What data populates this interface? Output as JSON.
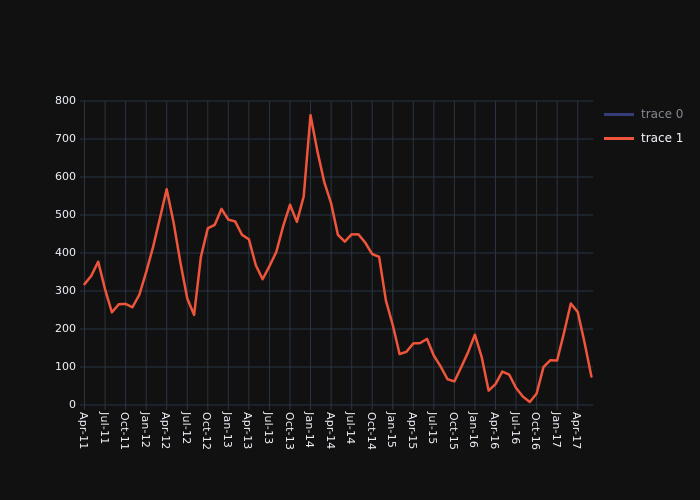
{
  "figure": {
    "background": "#111111",
    "gridcolor": "#283442",
    "tick_text_color": "#eaeef5"
  },
  "legend": {
    "items": [
      {
        "label": "trace 0",
        "color": "#636efa",
        "hidden": true
      },
      {
        "label": "trace 1",
        "color": "#EF553B",
        "hidden": false
      }
    ]
  },
  "chart_data": {
    "type": "line",
    "title": "",
    "xlabel": "",
    "ylabel": "",
    "x_range": [
      "Apr-2011",
      "Jun-2017"
    ],
    "x_data_interval": "monthly",
    "x_tick_interval": "quarterly",
    "x_tick_labels": [
      "Apr-11",
      "Jul-11",
      "Oct-11",
      "Jan-12",
      "Apr-12",
      "Jul-12",
      "Oct-12",
      "Jan-13",
      "Apr-13",
      "Jul-13",
      "Oct-13",
      "Jan-14",
      "Apr-14",
      "Jul-14",
      "Oct-14",
      "Jan-15",
      "Apr-15",
      "Jul-15",
      "Oct-15",
      "Jan-16",
      "Apr-16",
      "Jul-16",
      "Oct-16",
      "Jan-17",
      "Apr-17"
    ],
    "y_ticks": [
      0,
      100,
      200,
      300,
      400,
      500,
      600,
      700,
      800
    ],
    "ylim": [
      0,
      800
    ],
    "grid": true,
    "legend_position": "right",
    "series": [
      {
        "name": "trace 0",
        "color": "#636efa",
        "visible": false,
        "values": []
      },
      {
        "name": "trace 1",
        "color": "#EF553B",
        "visible": true,
        "values": [
          318,
          340,
          377,
          305,
          244,
          265,
          266,
          257,
          290,
          350,
          415,
          490,
          568,
          480,
          375,
          280,
          237,
          390,
          465,
          474,
          516,
          488,
          483,
          448,
          436,
          368,
          331,
          365,
          403,
          470,
          527,
          482,
          549,
          763,
          668,
          586,
          531,
          448,
          430,
          449,
          449,
          427,
          397,
          390,
          275,
          210,
          134,
          140,
          162,
          163,
          174,
          130,
          101,
          68,
          62,
          100,
          139,
          185,
          125,
          38,
          55,
          88,
          80,
          45,
          22,
          8,
          30,
          100,
          118,
          117,
          190,
          267,
          245,
          165,
          75
        ]
      }
    ]
  }
}
